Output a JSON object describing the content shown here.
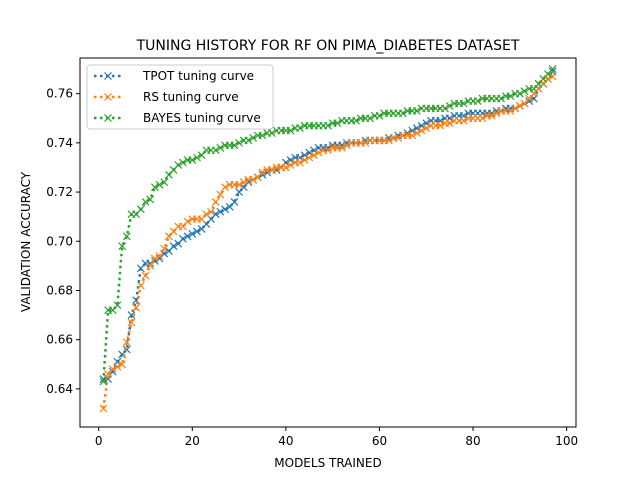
{
  "chart_data": {
    "type": "line",
    "title": "TUNING HISTORY FOR RF ON PIMA_DIABETES DATASET",
    "xlabel": "MODELS TRAINED",
    "ylabel": "VALIDATION ACCURACY",
    "xlim": [
      -4,
      102
    ],
    "ylim": [
      0.6245,
      0.7745
    ],
    "xticks": [
      0,
      20,
      40,
      60,
      80,
      100
    ],
    "yticks": [
      0.64,
      0.66,
      0.68,
      0.7,
      0.72,
      0.74,
      0.76
    ],
    "ytick_labels": [
      "0.64",
      "0.66",
      "0.68",
      "0.70",
      "0.72",
      "0.74",
      "0.76"
    ],
    "grid": false,
    "legend_position": "upper-left",
    "line_style": "dotted",
    "marker": "x",
    "series": [
      {
        "name": "TPOT tuning curve",
        "color": "#1f77b4",
        "x": [
          1,
          2,
          3,
          4,
          5,
          6,
          7,
          8,
          9,
          10,
          11,
          12,
          13,
          14,
          15,
          16,
          17,
          18,
          19,
          20,
          21,
          22,
          23,
          24,
          25,
          26,
          27,
          28,
          29,
          30,
          31,
          32,
          33,
          34,
          35,
          36,
          37,
          38,
          39,
          40,
          41,
          42,
          43,
          44,
          45,
          46,
          47,
          48,
          49,
          50,
          51,
          52,
          53,
          54,
          55,
          56,
          57,
          58,
          59,
          60,
          61,
          62,
          63,
          64,
          65,
          66,
          67,
          68,
          69,
          70,
          71,
          72,
          73,
          74,
          75,
          76,
          77,
          78,
          79,
          80,
          81,
          82,
          83,
          84,
          85,
          86,
          87,
          88,
          89,
          90,
          91,
          92,
          93,
          94,
          95,
          96,
          97
        ],
        "y": [
          0.644,
          0.644,
          0.647,
          0.651,
          0.654,
          0.656,
          0.67,
          0.676,
          0.689,
          0.691,
          0.691,
          0.692,
          0.693,
          0.695,
          0.696,
          0.698,
          0.699,
          0.701,
          0.702,
          0.703,
          0.704,
          0.705,
          0.707,
          0.709,
          0.711,
          0.712,
          0.713,
          0.714,
          0.716,
          0.72,
          0.722,
          0.724,
          0.725,
          0.726,
          0.727,
          0.728,
          0.729,
          0.729,
          0.73,
          0.732,
          0.733,
          0.734,
          0.734,
          0.735,
          0.736,
          0.737,
          0.738,
          0.738,
          0.738,
          0.739,
          0.739,
          0.739,
          0.74,
          0.74,
          0.74,
          0.74,
          0.741,
          0.741,
          0.741,
          0.741,
          0.741,
          0.742,
          0.742,
          0.743,
          0.743,
          0.744,
          0.745,
          0.746,
          0.747,
          0.748,
          0.749,
          0.749,
          0.749,
          0.75,
          0.75,
          0.751,
          0.751,
          0.751,
          0.752,
          0.752,
          0.752,
          0.752,
          0.752,
          0.752,
          0.753,
          0.753,
          0.754,
          0.754,
          0.754,
          0.755,
          0.756,
          0.757,
          0.758,
          0.762,
          0.764,
          0.766,
          0.769
        ]
      },
      {
        "name": "RS tuning curve",
        "color": "#ff7f0e",
        "x": [
          1,
          2,
          3,
          4,
          5,
          6,
          7,
          8,
          9,
          10,
          11,
          12,
          13,
          14,
          15,
          16,
          17,
          18,
          19,
          20,
          21,
          22,
          23,
          24,
          25,
          26,
          27,
          28,
          29,
          30,
          31,
          32,
          33,
          34,
          35,
          36,
          37,
          38,
          39,
          40,
          41,
          42,
          43,
          44,
          45,
          46,
          47,
          48,
          49,
          50,
          51,
          52,
          53,
          54,
          55,
          56,
          57,
          58,
          59,
          60,
          61,
          62,
          63,
          64,
          65,
          66,
          67,
          68,
          69,
          70,
          71,
          72,
          73,
          74,
          75,
          76,
          77,
          78,
          79,
          80,
          81,
          82,
          83,
          84,
          85,
          86,
          87,
          88,
          89,
          90,
          91,
          92,
          93,
          94,
          95,
          96,
          97
        ],
        "y": [
          0.632,
          0.646,
          0.648,
          0.649,
          0.65,
          0.659,
          0.667,
          0.673,
          0.682,
          0.686,
          0.69,
          0.693,
          0.694,
          0.697,
          0.702,
          0.704,
          0.706,
          0.706,
          0.708,
          0.709,
          0.709,
          0.709,
          0.711,
          0.712,
          0.716,
          0.719,
          0.722,
          0.723,
          0.723,
          0.723,
          0.724,
          0.725,
          0.725,
          0.726,
          0.728,
          0.729,
          0.729,
          0.73,
          0.73,
          0.73,
          0.731,
          0.732,
          0.732,
          0.733,
          0.734,
          0.735,
          0.736,
          0.737,
          0.737,
          0.738,
          0.738,
          0.738,
          0.739,
          0.74,
          0.74,
          0.74,
          0.74,
          0.741,
          0.741,
          0.741,
          0.741,
          0.741,
          0.742,
          0.742,
          0.743,
          0.743,
          0.743,
          0.744,
          0.745,
          0.746,
          0.747,
          0.747,
          0.747,
          0.748,
          0.748,
          0.749,
          0.749,
          0.749,
          0.75,
          0.75,
          0.75,
          0.75,
          0.751,
          0.751,
          0.752,
          0.753,
          0.753,
          0.753,
          0.754,
          0.755,
          0.756,
          0.758,
          0.76,
          0.762,
          0.764,
          0.766,
          0.767
        ]
      },
      {
        "name": "BAYES tuning curve",
        "color": "#2ca02c",
        "x": [
          1,
          2,
          3,
          4,
          5,
          6,
          7,
          8,
          9,
          10,
          11,
          12,
          13,
          14,
          15,
          16,
          17,
          18,
          19,
          20,
          21,
          22,
          23,
          24,
          25,
          26,
          27,
          28,
          29,
          30,
          31,
          32,
          33,
          34,
          35,
          36,
          37,
          38,
          39,
          40,
          41,
          42,
          43,
          44,
          45,
          46,
          47,
          48,
          49,
          50,
          51,
          52,
          53,
          54,
          55,
          56,
          57,
          58,
          59,
          60,
          61,
          62,
          63,
          64,
          65,
          66,
          67,
          68,
          69,
          70,
          71,
          72,
          73,
          74,
          75,
          76,
          77,
          78,
          79,
          80,
          81,
          82,
          83,
          84,
          85,
          86,
          87,
          88,
          89,
          90,
          91,
          92,
          93,
          94,
          95,
          96,
          97
        ],
        "y": [
          0.643,
          0.672,
          0.672,
          0.674,
          0.698,
          0.702,
          0.711,
          0.711,
          0.713,
          0.716,
          0.717,
          0.722,
          0.723,
          0.724,
          0.727,
          0.729,
          0.731,
          0.732,
          0.733,
          0.733,
          0.734,
          0.735,
          0.737,
          0.737,
          0.737,
          0.738,
          0.739,
          0.739,
          0.739,
          0.74,
          0.741,
          0.741,
          0.742,
          0.743,
          0.743,
          0.744,
          0.744,
          0.745,
          0.745,
          0.745,
          0.745,
          0.746,
          0.746,
          0.747,
          0.747,
          0.747,
          0.747,
          0.747,
          0.747,
          0.748,
          0.748,
          0.749,
          0.749,
          0.749,
          0.749,
          0.75,
          0.75,
          0.75,
          0.751,
          0.751,
          0.752,
          0.752,
          0.752,
          0.752,
          0.752,
          0.753,
          0.753,
          0.753,
          0.754,
          0.754,
          0.754,
          0.754,
          0.754,
          0.754,
          0.755,
          0.756,
          0.756,
          0.756,
          0.757,
          0.757,
          0.757,
          0.758,
          0.758,
          0.758,
          0.758,
          0.758,
          0.759,
          0.759,
          0.76,
          0.76,
          0.761,
          0.762,
          0.762,
          0.764,
          0.766,
          0.768,
          0.77
        ]
      }
    ]
  }
}
